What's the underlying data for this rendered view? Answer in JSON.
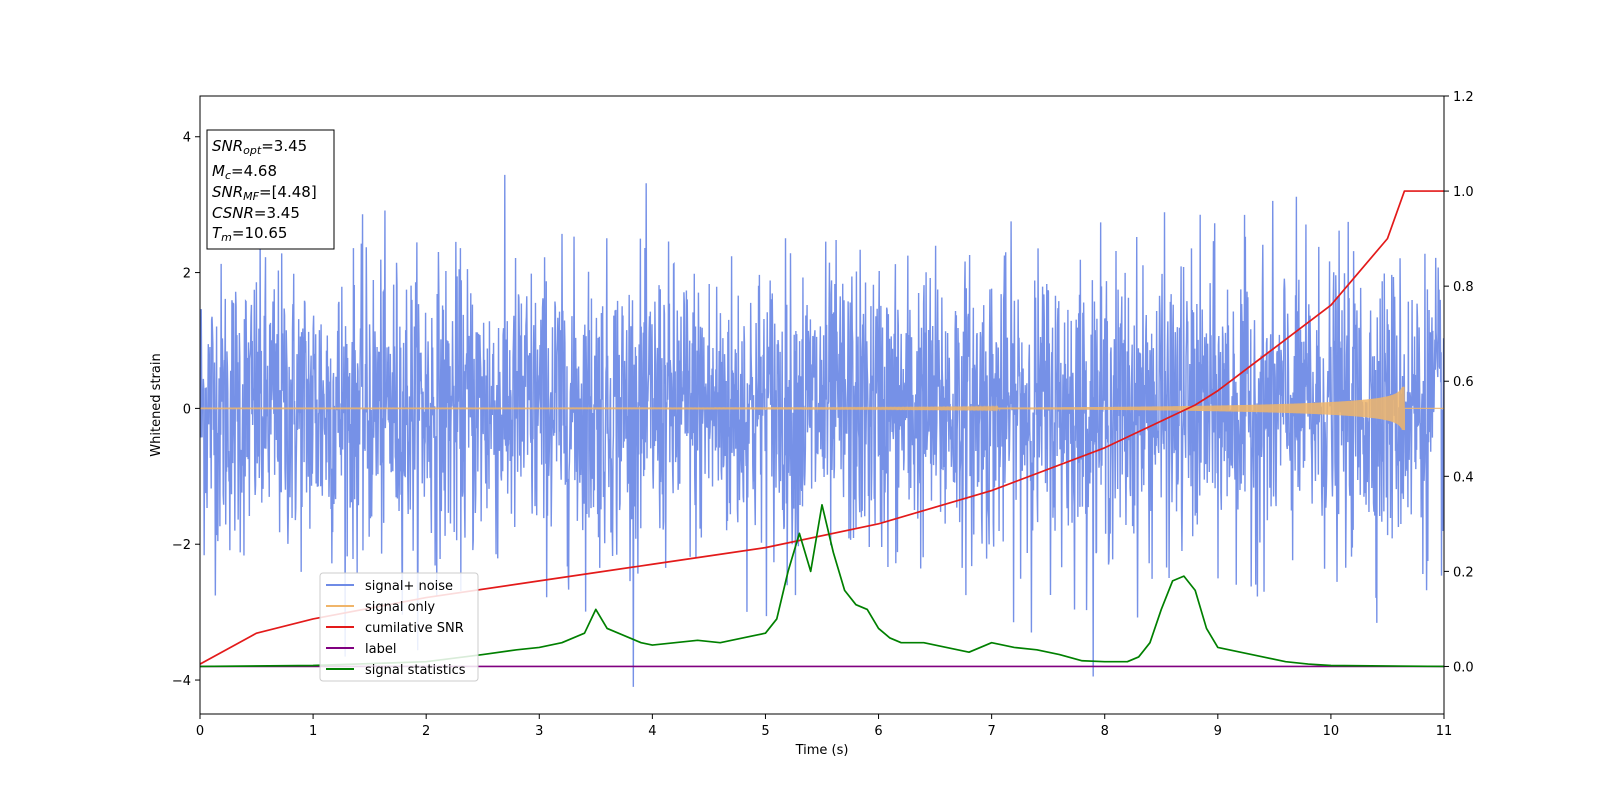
{
  "chart_data": {
    "type": "line",
    "xlabel": "Time (s)",
    "ylabel": "Whitened strain",
    "xlim": [
      0,
      11
    ],
    "ylim": [
      -4.5,
      4.6
    ],
    "y2lim": [
      -0.1,
      1.2
    ],
    "xticks": [
      0,
      1,
      2,
      3,
      4,
      5,
      6,
      7,
      8,
      9,
      10,
      11
    ],
    "yticks": [
      -4,
      -2,
      0,
      2,
      4
    ],
    "y2ticks": [
      "0.0",
      "0.2",
      "0.4",
      "0.6",
      "0.8",
      "1.0",
      "1.2"
    ],
    "grid": false,
    "legend_placement": "lower-left",
    "annotation": [
      {
        "var": "SNR",
        "sub": "opt",
        "value": "=3.45"
      },
      {
        "var": "M",
        "sub": "c",
        "value": "=4.68"
      },
      {
        "var": "SNR",
        "sub": "MF",
        "value": "=[4.48]"
      },
      {
        "var": "CSNR",
        "sub": "",
        "value": "=3.45"
      },
      {
        "var": "T",
        "sub": "m",
        "value": "=10.65"
      }
    ],
    "series": [
      {
        "name": "signal+ noise",
        "color": "#6f8be6",
        "axis": "left",
        "style": "noise",
        "amplitude": 2.4,
        "range": [
          -4.1,
          4.2
        ]
      },
      {
        "name": "signal only",
        "color": "#f0b56a",
        "axis": "left",
        "style": "chirp",
        "end_time": 10.65,
        "peak_amplitude": 0.32
      },
      {
        "name": "cumilative SNR",
        "color": "#e31a1a",
        "axis": "right",
        "x": [
          0,
          0.5,
          1,
          2,
          3,
          4,
          5,
          6,
          7,
          8,
          8.8,
          9,
          10,
          10.5,
          10.65,
          11
        ],
        "y": [
          0.005,
          0.07,
          0.1,
          0.145,
          0.18,
          0.215,
          0.25,
          0.3,
          0.37,
          0.46,
          0.55,
          0.58,
          0.76,
          0.9,
          1.0,
          1.0
        ]
      },
      {
        "name": "label",
        "color": "#800080",
        "axis": "right",
        "x": [
          0,
          11
        ],
        "y": [
          0,
          0
        ]
      },
      {
        "name": "signal statistics",
        "color": "#008000",
        "axis": "right",
        "x": [
          0,
          1,
          2,
          2.5,
          2.8,
          3.0,
          3.2,
          3.4,
          3.5,
          3.6,
          3.8,
          3.9,
          4.0,
          4.2,
          4.4,
          4.6,
          4.8,
          5.0,
          5.1,
          5.2,
          5.3,
          5.4,
          5.5,
          5.6,
          5.7,
          5.8,
          5.9,
          6.0,
          6.1,
          6.2,
          6.4,
          6.6,
          6.8,
          7.0,
          7.2,
          7.4,
          7.6,
          7.8,
          8.0,
          8.2,
          8.3,
          8.4,
          8.5,
          8.6,
          8.7,
          8.8,
          8.9,
          9.0,
          9.2,
          9.4,
          9.6,
          9.8,
          10,
          11
        ],
        "y": [
          0.0,
          0.002,
          0.01,
          0.025,
          0.035,
          0.04,
          0.05,
          0.07,
          0.12,
          0.08,
          0.06,
          0.05,
          0.045,
          0.05,
          0.055,
          0.05,
          0.06,
          0.07,
          0.1,
          0.2,
          0.28,
          0.2,
          0.34,
          0.24,
          0.16,
          0.13,
          0.12,
          0.08,
          0.06,
          0.05,
          0.05,
          0.04,
          0.03,
          0.05,
          0.04,
          0.035,
          0.025,
          0.012,
          0.01,
          0.01,
          0.02,
          0.05,
          0.12,
          0.18,
          0.19,
          0.16,
          0.08,
          0.04,
          0.03,
          0.02,
          0.01,
          0.005,
          0.002,
          0.0
        ]
      }
    ]
  }
}
